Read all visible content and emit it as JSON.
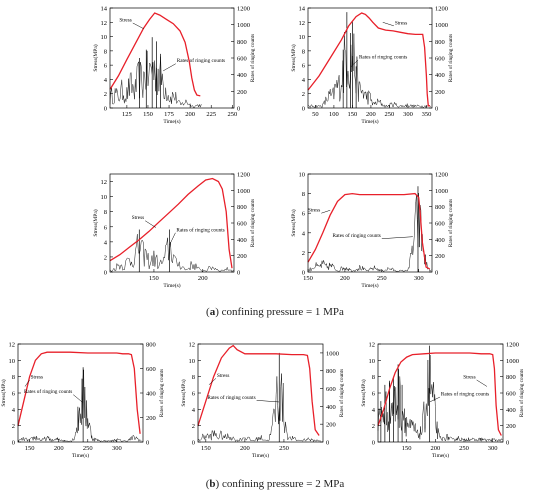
{
  "figure": {
    "caption_a_letter": "a",
    "caption_a_text": " confining pressure = 1 MPa",
    "caption_b_letter": "b",
    "caption_b_text": " confining pressure = 2 MPa",
    "colors": {
      "stress": "#e8202a",
      "ringing": "#000000",
      "axis": "#000000"
    }
  },
  "chart_data": [
    {
      "type": "line",
      "panel": "a1",
      "xlabel": "Time(s)",
      "ylabel": "Stress(MPa)",
      "y2label": "Rates of ringing counts",
      "xlim": [
        105,
        252
      ],
      "ylim": [
        0,
        14
      ],
      "y2lim": [
        0,
        1200
      ],
      "xticks": [
        125,
        150,
        175,
        200,
        225,
        250
      ],
      "yticks": [
        0,
        2,
        4,
        6,
        8,
        10,
        12,
        14
      ],
      "y2ticks": [
        0,
        200,
        400,
        600,
        800,
        1000,
        1200
      ],
      "annotations": [
        {
          "text": "Stress",
          "at": [
            132,
            11.9
          ],
          "points_to": [
            145,
            11.1
          ]
        },
        {
          "text": "Rates of ringing counts",
          "at": [
            183,
            6.2
          ],
          "points_to": [
            168,
            5.2
          ]
        }
      ],
      "series": [
        {
          "name": "stress",
          "x": [
            105,
            115,
            125,
            135,
            145,
            152,
            158,
            164,
            172,
            180,
            188,
            194,
            199,
            202,
            205,
            208,
            212
          ],
          "y": [
            2.6,
            4.5,
            6.8,
            9.0,
            11.2,
            12.4,
            13.3,
            13.0,
            12.4,
            11.8,
            10.8,
            9.2,
            6.5,
            4.2,
            2.5,
            1.8,
            1.7
          ]
        },
        {
          "name": "ringing",
          "peaks": [
            [
              110,
              300
            ],
            [
              120,
              350
            ],
            [
              130,
              450
            ],
            [
              140,
              600
            ],
            [
              148,
              700
            ],
            [
              155,
              850
            ],
            [
              160,
              800
            ],
            [
              165,
              650
            ],
            [
              170,
              400
            ],
            [
              180,
              250
            ],
            [
              195,
              120
            ],
            [
              210,
              60
            ],
            [
              235,
              40
            ]
          ],
          "noise_floor": 30,
          "step": 1
        }
      ]
    },
    {
      "type": "line",
      "panel": "a2",
      "xlabel": "Time(s)",
      "ylabel": "Stress(MPa)",
      "y2label": "Rates of ringing counts",
      "xlim": [
        30,
        365
      ],
      "ylim": [
        0,
        14
      ],
      "y2lim": [
        0,
        1200
      ],
      "xticks": [
        50,
        100,
        150,
        200,
        250,
        300,
        350
      ],
      "yticks": [
        0,
        2,
        4,
        6,
        8,
        10,
        12,
        14
      ],
      "y2ticks": [
        0,
        200,
        400,
        600,
        800,
        1000,
        1200
      ],
      "annotations": [
        {
          "text": "Stress",
          "at": [
            262,
            11.5
          ],
          "points_to": [
            232,
            12.0
          ]
        },
        {
          "text": "Rates of ringing counts",
          "at": [
            165,
            6.7
          ],
          "points_to": [
            146,
            5.8
          ]
        }
      ],
      "series": [
        {
          "name": "stress",
          "x": [
            30,
            60,
            90,
            120,
            140,
            160,
            175,
            185,
            195,
            205,
            220,
            240,
            260,
            280,
            300,
            320,
            340,
            345,
            350,
            352,
            355,
            360
          ],
          "y": [
            2.5,
            4.5,
            7.0,
            9.5,
            11.5,
            12.8,
            13.3,
            13.1,
            12.6,
            12.0,
            11.2,
            10.9,
            10.8,
            10.6,
            10.4,
            10.3,
            10.3,
            8.5,
            4.5,
            2.0,
            0.3,
            0.3
          ]
        },
        {
          "name": "ringing",
          "peaks": [
            [
              90,
              250
            ],
            [
              110,
              450
            ],
            [
              125,
              700
            ],
            [
              135,
              1150
            ],
            [
              145,
              900
            ],
            [
              150,
              1050
            ],
            [
              160,
              500
            ],
            [
              175,
              350
            ],
            [
              190,
              250
            ],
            [
              220,
              120
            ],
            [
              260,
              80
            ],
            [
              300,
              60
            ]
          ],
          "noise_floor": 40,
          "step": 2
        }
      ]
    },
    {
      "type": "line",
      "panel": "a3",
      "xlabel": "Time(s)",
      "ylabel": "Stress(MPa)",
      "y2label": "Rates of ringing counts",
      "xlim": [
        105,
        232
      ],
      "ylim": [
        0,
        13
      ],
      "y2lim": [
        0,
        1200
      ],
      "xticks": [
        150,
        200
      ],
      "yticks": [
        0,
        2,
        4,
        6,
        8,
        10,
        12
      ],
      "y2ticks": [
        0,
        200,
        400,
        600,
        800,
        1000,
        1200
      ],
      "annotations": [
        {
          "text": "Stress",
          "at": [
            141,
            6.8
          ],
          "points_to": [
            152,
            5.9
          ]
        },
        {
          "text": "Rates of ringing counts",
          "at": [
            172,
            5.2
          ],
          "points_to": [
            166,
            3.6
          ]
        }
      ],
      "series": [
        {
          "name": "stress",
          "x": [
            105,
            115,
            125,
            135,
            145,
            155,
            165,
            175,
            185,
            195,
            203,
            210,
            216,
            220,
            224,
            227,
            230
          ],
          "y": [
            1.5,
            2.3,
            3.3,
            4.3,
            5.4,
            6.6,
            7.8,
            9.0,
            10.3,
            11.4,
            12.2,
            12.4,
            12.0,
            11.0,
            8.0,
            3.0,
            0.5
          ]
        },
        {
          "name": "ringing",
          "peaks": [
            [
              115,
              150
            ],
            [
              125,
              250
            ],
            [
              130,
              300
            ],
            [
              135,
              520
            ],
            [
              140,
              380
            ],
            [
              150,
              280
            ],
            [
              160,
              220
            ],
            [
              166,
              520
            ],
            [
              175,
              180
            ],
            [
              190,
              150
            ],
            [
              210,
              100
            ],
            [
              225,
              60
            ]
          ],
          "noise_floor": 30,
          "step": 1
        }
      ]
    },
    {
      "type": "line",
      "panel": "a4",
      "xlabel": "Time(s)",
      "ylabel": "Stress(MPa)",
      "y2label": "Rates of ringing counts",
      "xlim": [
        150,
        318
      ],
      "ylim": [
        0,
        10
      ],
      "y2lim": [
        0,
        1200
      ],
      "xticks": [
        150,
        200,
        250,
        300
      ],
      "yticks": [
        0,
        2,
        4,
        6,
        8,
        10
      ],
      "y2ticks": [
        0,
        200,
        400,
        600,
        800,
        1000,
        1200
      ],
      "annotations": [
        {
          "text": "Stress",
          "at": [
            168,
            6.0
          ],
          "points_to": [
            180,
            6.3
          ]
        },
        {
          "text": "Rates of ringing counts",
          "at": [
            250,
            3.4
          ],
          "points_to": [
            292,
            3.6
          ]
        }
      ],
      "series": [
        {
          "name": "stress",
          "x": [
            150,
            160,
            170,
            180,
            190,
            200,
            210,
            220,
            240,
            260,
            280,
            295,
            300,
            302,
            305,
            310,
            315
          ],
          "y": [
            1.0,
            2.3,
            4.0,
            5.8,
            7.2,
            7.9,
            8.0,
            7.9,
            7.9,
            7.9,
            7.9,
            8.0,
            7.6,
            6.0,
            3.0,
            0.5,
            0.3
          ]
        },
        {
          "name": "ringing",
          "peaks": [
            [
              160,
              120
            ],
            [
              170,
              150
            ],
            [
              180,
              130
            ],
            [
              200,
              100
            ],
            [
              220,
              90
            ],
            [
              240,
              80
            ],
            [
              260,
              70
            ],
            [
              299,
              1050
            ],
            [
              305,
              200
            ],
            [
              310,
              60
            ]
          ],
          "noise_floor": 25,
          "step": 1
        }
      ]
    },
    {
      "type": "line",
      "panel": "b1",
      "xlabel": "Time(s)",
      "ylabel": "Stress(MPa)",
      "y2label": "Rates of ringing counts",
      "xlim": [
        130,
        345
      ],
      "ylim": [
        0,
        12
      ],
      "y2lim": [
        0,
        800
      ],
      "xticks": [
        150,
        200,
        250,
        300
      ],
      "yticks": [
        0,
        2,
        4,
        6,
        8,
        10,
        12
      ],
      "y2ticks": [
        0,
        200,
        400,
        600,
        800
      ],
      "annotations": [
        {
          "text": "Stress",
          "at": [
            150,
            7.6
          ],
          "points_to": [
            142,
            6.8
          ]
        },
        {
          "text": "Rates of ringing counts",
          "at": [
            225,
            5.8
          ],
          "points_to": [
            242,
            4.8
          ]
        }
      ],
      "series": [
        {
          "name": "stress",
          "x": [
            130,
            140,
            150,
            160,
            170,
            180,
            190,
            200,
            220,
            250,
            280,
            300,
            310,
            320,
            325,
            330,
            335,
            340
          ],
          "y": [
            2.0,
            5.0,
            8.0,
            10.0,
            10.8,
            11.0,
            11.0,
            11.0,
            11.0,
            10.9,
            10.9,
            10.9,
            10.8,
            10.8,
            10.7,
            9.0,
            4.0,
            1.0
          ]
        },
        {
          "name": "ringing",
          "peaks": [
            [
              140,
              40
            ],
            [
              160,
              60
            ],
            [
              180,
              50
            ],
            [
              200,
              40
            ],
            [
              242,
              610
            ],
            [
              260,
              40
            ],
            [
              300,
              30
            ],
            [
              330,
              60
            ]
          ],
          "noise_floor": 15,
          "step": 1
        }
      ]
    },
    {
      "type": "line",
      "panel": "b2",
      "xlabel": "Time(s)",
      "ylabel": "Stress(MPa)",
      "y2label": "Rates of ringing counts",
      "xlim": [
        140,
        300
      ],
      "ylim": [
        0,
        12
      ],
      "y2lim": [
        0,
        1100
      ],
      "xticks": [
        150,
        200,
        250
      ],
      "yticks": [
        0,
        2,
        4,
        6,
        8,
        10,
        12
      ],
      "y2ticks": [
        0,
        200,
        400,
        600,
        800,
        1000
      ],
      "annotations": [
        {
          "text": "Stress",
          "at": [
            163,
            7.8
          ],
          "points_to": [
            154,
            7.0
          ]
        },
        {
          "text": "Rates of ringing counts",
          "at": [
            215,
            5.1
          ],
          "points_to": [
            244,
            4.9
          ]
        }
      ],
      "series": [
        {
          "name": "stress",
          "x": [
            140,
            150,
            160,
            170,
            180,
            185,
            190,
            200,
            220,
            240,
            260,
            275,
            280,
            283,
            286,
            290,
            295
          ],
          "y": [
            2.0,
            5.0,
            8.0,
            10.3,
            11.5,
            11.8,
            11.3,
            10.8,
            10.8,
            10.8,
            10.7,
            10.7,
            10.6,
            9.0,
            5.0,
            1.5,
            0.8
          ]
        },
        {
          "name": "ringing",
          "peaks": [
            [
              150,
              120
            ],
            [
              160,
              150
            ],
            [
              170,
              130
            ],
            [
              180,
              110
            ],
            [
              200,
              90
            ],
            [
              220,
              80
            ],
            [
              244,
              1000
            ],
            [
              260,
              70
            ],
            [
              280,
              60
            ]
          ],
          "noise_floor": 30,
          "step": 1
        }
      ]
    },
    {
      "type": "line",
      "panel": "b3",
      "xlabel": "Time(s)",
      "ylabel": "Stress(MPa)",
      "y2label": "Rates of ringing counts",
      "xlim": [
        100,
        318
      ],
      "ylim": [
        0,
        12
      ],
      "y2lim": [
        0,
        1200
      ],
      "xticks": [
        150,
        200,
        250,
        300
      ],
      "yticks": [
        0,
        2,
        4,
        6,
        8,
        10,
        12
      ],
      "y2ticks": [
        0,
        200,
        400,
        600,
        800,
        1000,
        1200
      ],
      "annotations": [
        {
          "text": "Stress",
          "at": [
            272,
            7.6
          ],
          "points_to": [
            290,
            6.8
          ]
        },
        {
          "text": "Rates of ringing counts",
          "at": [
            208,
            5.5
          ],
          "points_to": [
            190,
            4.9
          ]
        }
      ],
      "series": [
        {
          "name": "stress",
          "x": [
            100,
            110,
            120,
            130,
            140,
            150,
            160,
            180,
            200,
            220,
            240,
            260,
            280,
            295,
            300,
            303,
            306,
            310,
            315
          ],
          "y": [
            2.0,
            4.0,
            6.5,
            8.5,
            9.8,
            10.4,
            10.7,
            10.8,
            10.9,
            10.9,
            10.9,
            10.9,
            10.8,
            10.8,
            10.7,
            9.0,
            4.5,
            1.5,
            0.8
          ]
        },
        {
          "name": "ringing",
          "peaks": [
            [
              105,
              500
            ],
            [
              112,
              700
            ],
            [
              120,
              750
            ],
            [
              127,
              800
            ],
            [
              135,
              950
            ],
            [
              142,
              700
            ],
            [
              150,
              400
            ],
            [
              160,
              300
            ],
            [
              175,
              200
            ],
            [
              190,
              1180
            ],
            [
              200,
              150
            ],
            [
              220,
              100
            ],
            [
              240,
              80
            ],
            [
              260,
              70
            ],
            [
              280,
              60
            ],
            [
              300,
              50
            ]
          ],
          "noise_floor": 40,
          "step": 1
        }
      ]
    }
  ]
}
